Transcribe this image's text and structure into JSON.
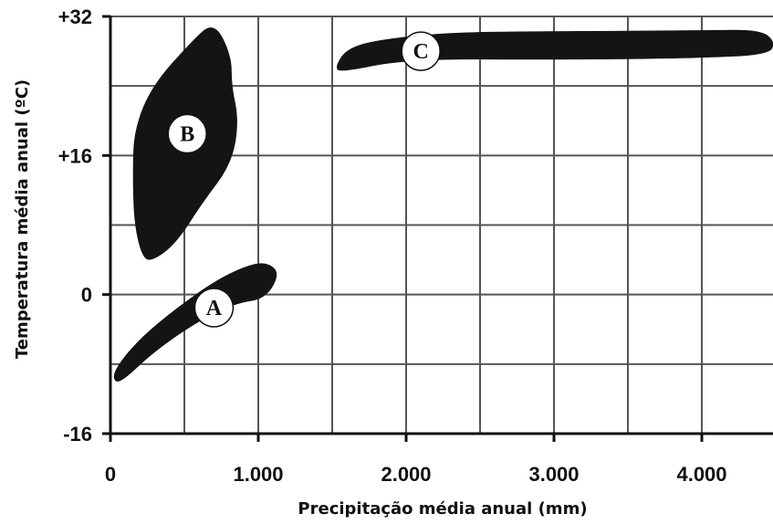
{
  "chart_data": {
    "type": "scatter",
    "xlabel": "Precipitação média anual (mm)",
    "ylabel": "Temperatura média anual (ºC)",
    "xlim": [
      0,
      4500
    ],
    "ylim": [
      -16,
      32
    ],
    "x_ticks": [
      0,
      1000,
      2000,
      3000,
      4000
    ],
    "x_tick_labels": [
      "0",
      "1.000",
      "2.000",
      "3.000",
      "4.000"
    ],
    "y_ticks": [
      -16,
      0,
      16,
      32
    ],
    "y_tick_labels": [
      "-16",
      "0",
      "+16",
      "+32"
    ],
    "x_grid_step": 500,
    "y_grid_step": 8,
    "grid": true,
    "region_color": "#141414",
    "regions": [
      {
        "name": "A",
        "label_at": [
          700,
          -1.5
        ],
        "outline": [
          [
            80,
            -10
          ],
          [
            300,
            -6.5
          ],
          [
            600,
            -3
          ],
          [
            850,
            -1
          ],
          [
            1050,
            -0.5
          ],
          [
            1150,
            2.5
          ],
          [
            1050,
            3.8
          ],
          [
            900,
            3.2
          ],
          [
            700,
            1.5
          ],
          [
            450,
            -1.5
          ],
          [
            200,
            -5
          ],
          [
            30,
            -8.5
          ],
          [
            20,
            -10
          ]
        ]
      },
      {
        "name": "B",
        "label_at": [
          520,
          18.5
        ],
        "outline": [
          [
            300,
            4
          ],
          [
            450,
            6
          ],
          [
            620,
            10.5
          ],
          [
            820,
            15
          ],
          [
            870,
            20
          ],
          [
            820,
            24
          ],
          [
            820,
            27.5
          ],
          [
            700,
            31.5
          ],
          [
            540,
            29
          ],
          [
            280,
            24
          ],
          [
            160,
            19
          ],
          [
            150,
            14
          ],
          [
            160,
            8
          ],
          [
            220,
            4
          ]
        ]
      },
      {
        "name": "C",
        "label_at": [
          2100,
          28
        ],
        "outline": [
          [
            1550,
            25.5
          ],
          [
            2000,
            27.1
          ],
          [
            3000,
            27
          ],
          [
            4000,
            27.2
          ],
          [
            4450,
            27.6
          ],
          [
            4500,
            29
          ],
          [
            4400,
            30.5
          ],
          [
            4000,
            30.4
          ],
          [
            3000,
            30.3
          ],
          [
            2300,
            30.2
          ],
          [
            1800,
            29.3
          ],
          [
            1600,
            28.3
          ],
          [
            1520,
            26.3
          ]
        ]
      }
    ]
  }
}
